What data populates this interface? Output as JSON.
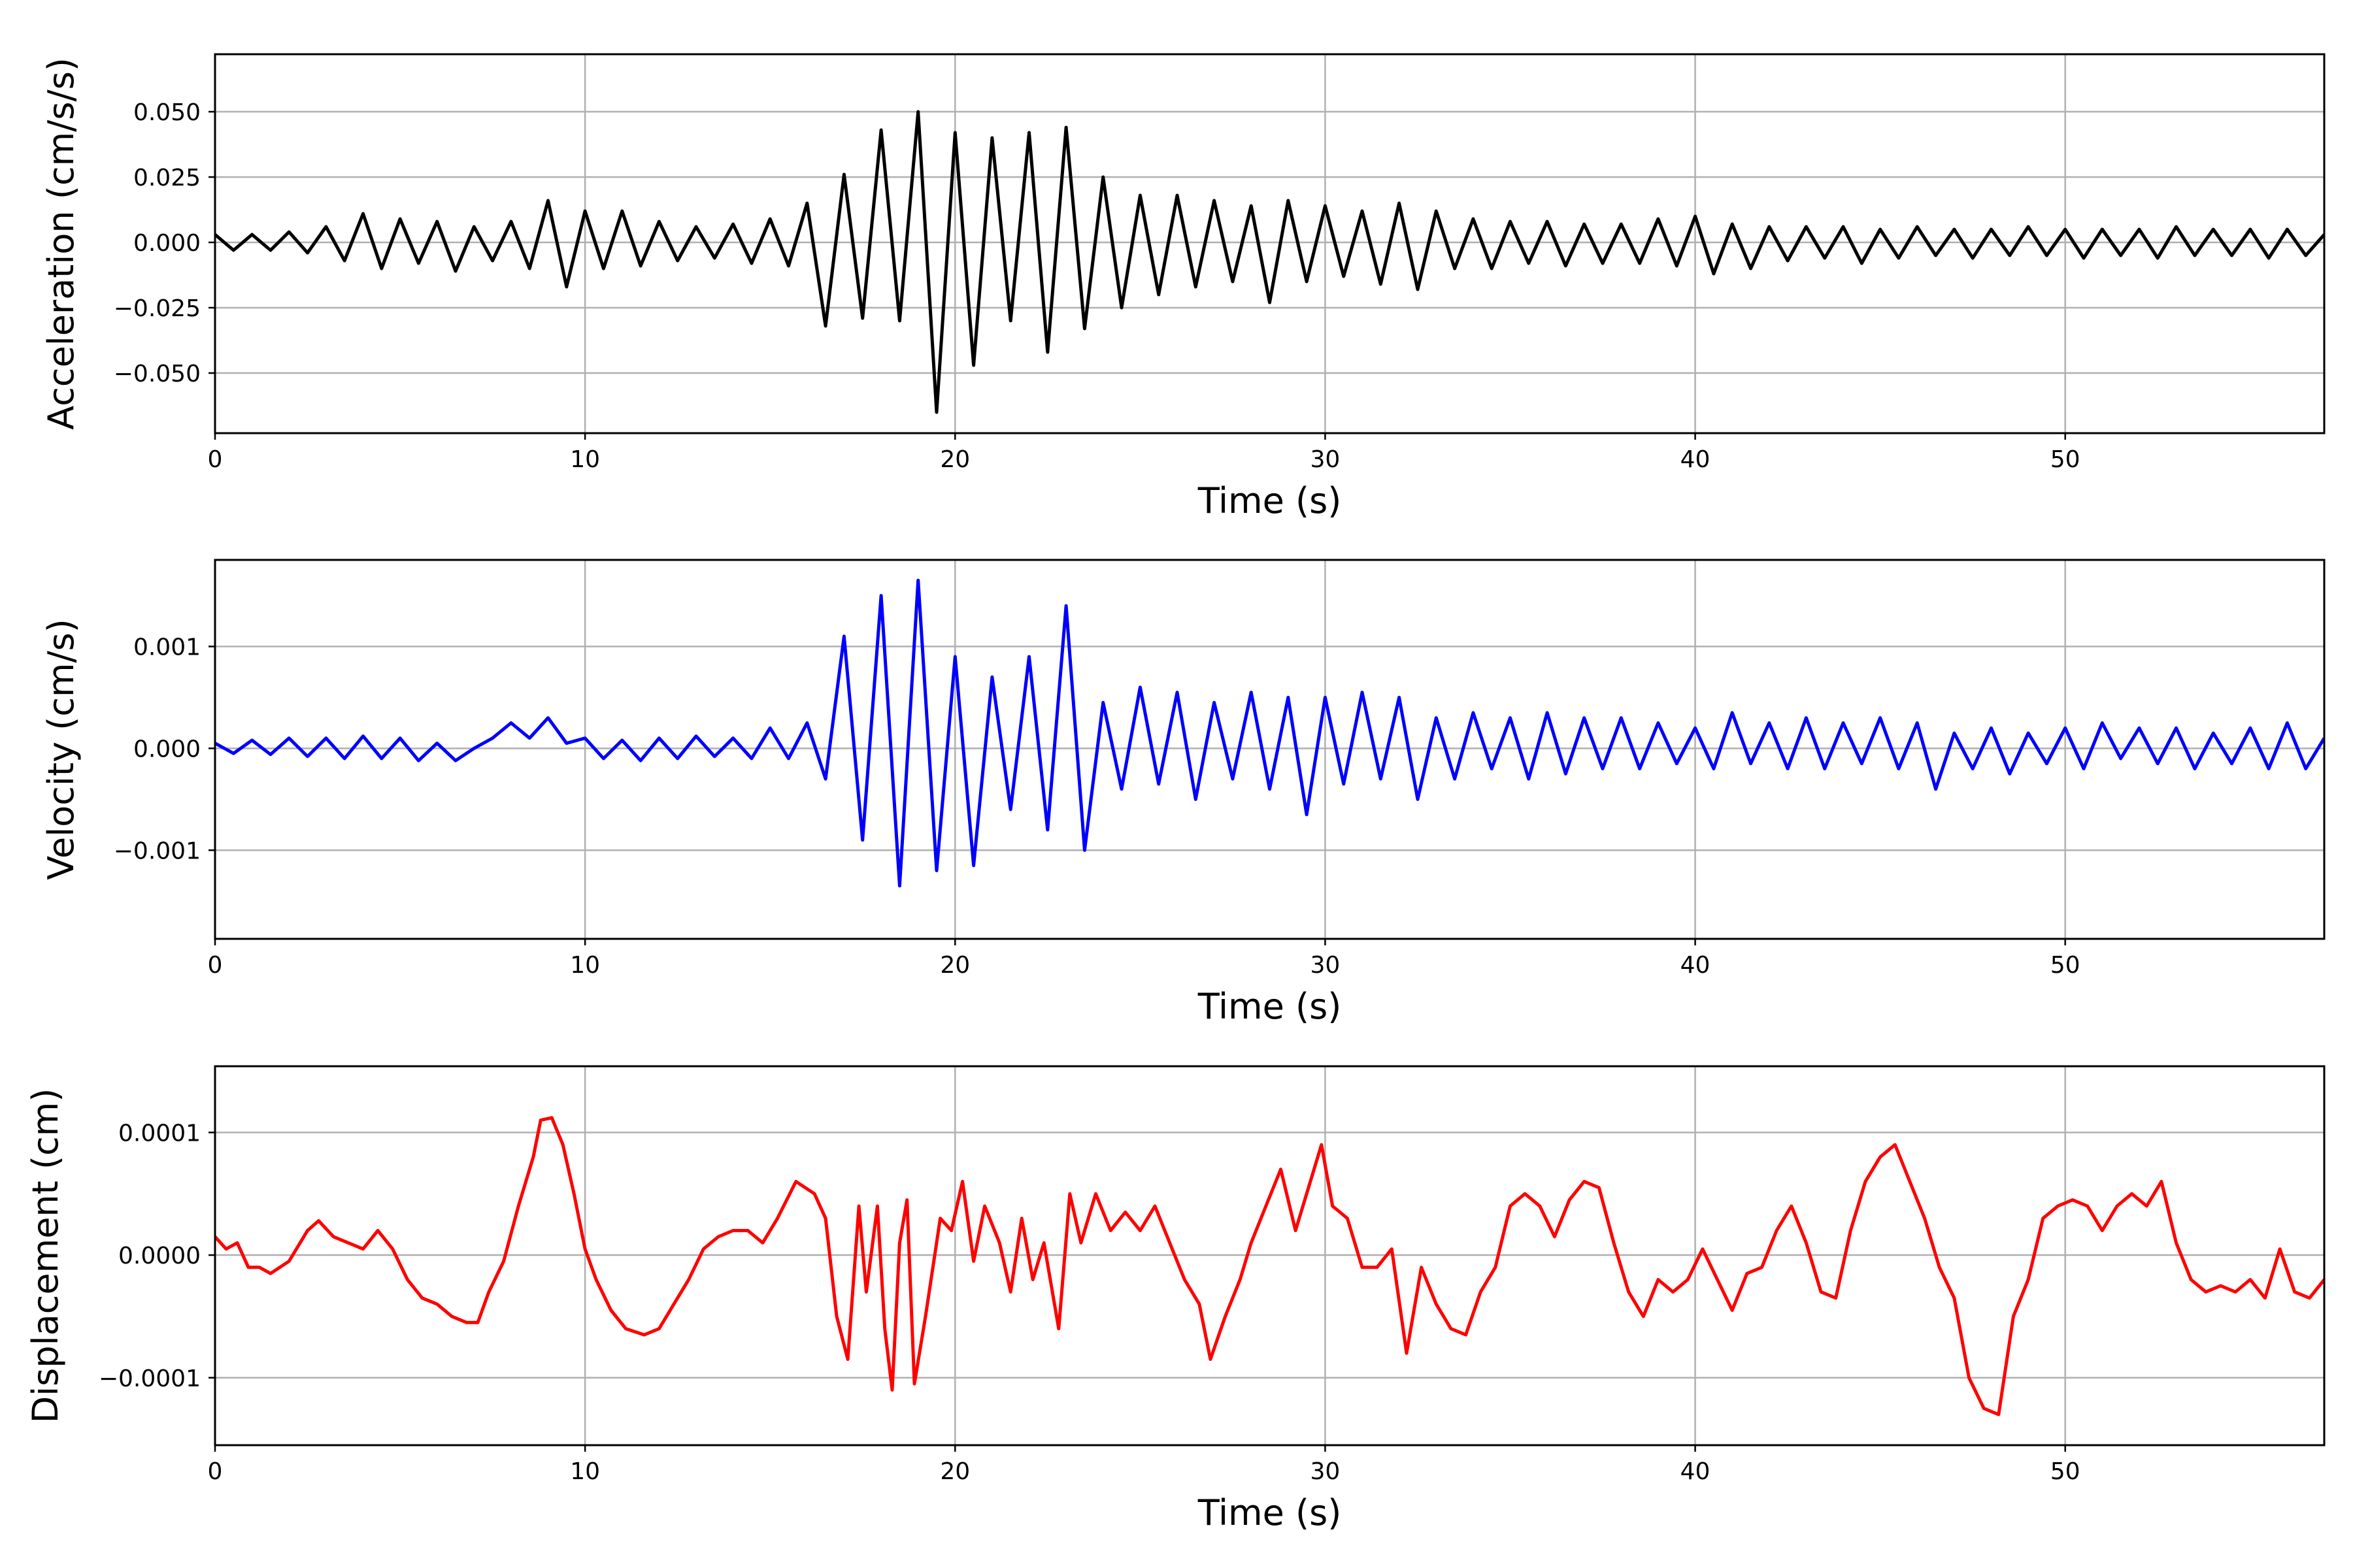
{
  "chart_data": [
    {
      "type": "line",
      "title": "",
      "xlabel": "Time (s)",
      "ylabel": "Acceleration (cm/s/s)",
      "xlim": [
        0,
        57
      ],
      "ylim": [
        -0.073,
        0.072
      ],
      "xticks": [
        0,
        10,
        20,
        30,
        40,
        50
      ],
      "xtick_labels": [
        "0",
        "10",
        "20",
        "30",
        "40",
        "50"
      ],
      "yticks": [
        -0.05,
        -0.025,
        0,
        0.025,
        0.05
      ],
      "ytick_labels": [
        "−0.050",
        "−0.025",
        "0.000",
        "0.025",
        "0.050"
      ],
      "grid": true,
      "color": "#000000",
      "t0": 0,
      "dt": 0.5,
      "scale": 0.01,
      "values": [
        0.3,
        -0.3,
        0.3,
        -0.3,
        0.4,
        -0.4,
        0.6,
        -0.7,
        1.1,
        -1.0,
        0.9,
        -0.8,
        0.8,
        -1.1,
        0.6,
        -0.7,
        0.8,
        -1.0,
        1.6,
        -1.7,
        1.2,
        -1.0,
        1.2,
        -0.9,
        0.8,
        -0.7,
        0.6,
        -0.6,
        0.7,
        -0.8,
        0.9,
        -0.9,
        1.5,
        -3.2,
        2.6,
        -2.9,
        4.3,
        -3.0,
        5.0,
        -6.5,
        4.2,
        -4.7,
        4.0,
        -3.0,
        4.2,
        -4.2,
        4.4,
        -3.3,
        2.5,
        -2.5,
        1.8,
        -2.0,
        1.8,
        -1.7,
        1.6,
        -1.5,
        1.4,
        -2.3,
        1.6,
        -1.5,
        1.4,
        -1.3,
        1.2,
        -1.6,
        1.5,
        -1.8,
        1.2,
        -1.0,
        0.9,
        -1.0,
        0.8,
        -0.8,
        0.8,
        -0.9,
        0.7,
        -0.8,
        0.7,
        -0.8,
        0.9,
        -0.9,
        1.0,
        -1.2,
        0.7,
        -1.0,
        0.6,
        -0.7,
        0.6,
        -0.6,
        0.6,
        -0.8,
        0.5,
        -0.6,
        0.6,
        -0.5,
        0.5,
        -0.6,
        0.5,
        -0.5,
        0.6,
        -0.5,
        0.5,
        -0.6,
        0.5,
        -0.5,
        0.5,
        -0.6,
        0.6,
        -0.5,
        0.5,
        -0.5,
        0.5,
        -0.6,
        0.5,
        -0.5,
        0.3
      ]
    },
    {
      "type": "line",
      "title": "",
      "xlabel": "Time (s)",
      "ylabel": "Velocity (cm/s)",
      "xlim": [
        0,
        57
      ],
      "ylim": [
        -0.00187,
        0.00185
      ],
      "xticks": [
        0,
        10,
        20,
        30,
        40,
        50
      ],
      "xtick_labels": [
        "0",
        "10",
        "20",
        "30",
        "40",
        "50"
      ],
      "yticks": [
        -0.001,
        0,
        0.001
      ],
      "ytick_labels": [
        "−0.001",
        "0.000",
        "0.001"
      ],
      "grid": true,
      "color": "#0000ff",
      "t0": 0,
      "dt": 0.5,
      "scale": 0.001,
      "values": [
        0.05,
        -0.05,
        0.08,
        -0.06,
        0.1,
        -0.08,
        0.1,
        -0.1,
        0.12,
        -0.1,
        0.1,
        -0.12,
        0.05,
        -0.12,
        0.0,
        0.1,
        0.25,
        0.1,
        0.3,
        0.05,
        0.1,
        -0.1,
        0.08,
        -0.12,
        0.1,
        -0.1,
        0.12,
        -0.08,
        0.1,
        -0.1,
        0.2,
        -0.1,
        0.25,
        -0.3,
        1.1,
        -0.9,
        1.5,
        -1.35,
        1.65,
        -1.2,
        0.9,
        -1.15,
        0.7,
        -0.6,
        0.9,
        -0.8,
        1.4,
        -1.0,
        0.45,
        -0.4,
        0.6,
        -0.35,
        0.55,
        -0.5,
        0.45,
        -0.3,
        0.55,
        -0.4,
        0.5,
        -0.65,
        0.5,
        -0.35,
        0.55,
        -0.3,
        0.5,
        -0.5,
        0.3,
        -0.3,
        0.35,
        -0.2,
        0.3,
        -0.3,
        0.35,
        -0.25,
        0.3,
        -0.2,
        0.3,
        -0.2,
        0.25,
        -0.15,
        0.2,
        -0.2,
        0.35,
        -0.15,
        0.25,
        -0.2,
        0.3,
        -0.2,
        0.25,
        -0.15,
        0.3,
        -0.2,
        0.25,
        -0.4,
        0.15,
        -0.2,
        0.2,
        -0.25,
        0.15,
        -0.15,
        0.2,
        -0.2,
        0.25,
        -0.1,
        0.2,
        -0.15,
        0.2,
        -0.2,
        0.15,
        -0.15,
        0.2,
        -0.2,
        0.25,
        -0.2,
        0.1
      ]
    },
    {
      "type": "line",
      "title": "",
      "xlabel": "Time (s)",
      "ylabel": "Displacement (cm)",
      "xlim": [
        0,
        57
      ],
      "ylim": [
        -0.000155,
        0.000154
      ],
      "xticks": [
        0,
        10,
        20,
        30,
        40,
        50
      ],
      "xtick_labels": [
        "0",
        "10",
        "20",
        "30",
        "40",
        "50"
      ],
      "yticks": [
        -0.0001,
        0,
        0.0001
      ],
      "ytick_labels": [
        "−0.0001",
        "0.0000",
        "0.0001"
      ],
      "grid": true,
      "color": "#ff0000",
      "scale": 0.0001,
      "x": [
        0,
        0.3,
        0.6,
        0.9,
        1.2,
        1.5,
        2,
        2.5,
        2.8,
        3.2,
        3.6,
        4,
        4.4,
        4.8,
        5.2,
        5.6,
        6,
        6.4,
        6.8,
        7.1,
        7.4,
        7.8,
        8.2,
        8.6,
        8.8,
        9.1,
        9.4,
        9.7,
        10,
        10.3,
        10.7,
        11.1,
        11.6,
        12,
        12.4,
        12.8,
        13.2,
        13.6,
        14,
        14.4,
        14.8,
        15.2,
        15.7,
        16.2,
        16.5,
        16.8,
        17.1,
        17.4,
        17.6,
        17.9,
        18.1,
        18.3,
        18.5,
        18.7,
        18.9,
        19.2,
        19.6,
        19.9,
        20.2,
        20.5,
        20.8,
        21.2,
        21.5,
        21.8,
        22.1,
        22.4,
        22.8,
        23.1,
        23.4,
        23.8,
        24.2,
        24.6,
        25,
        25.4,
        25.8,
        26.2,
        26.6,
        26.9,
        27.3,
        27.7,
        28,
        28.4,
        28.8,
        29.2,
        29.6,
        29.9,
        30.2,
        30.6,
        31,
        31.4,
        31.8,
        32.2,
        32.6,
        33,
        33.4,
        33.8,
        34.2,
        34.6,
        35,
        35.4,
        35.8,
        36.2,
        36.6,
        37,
        37.4,
        37.8,
        38.2,
        38.6,
        39,
        39.4,
        39.8,
        40.2,
        40.6,
        41,
        41.4,
        41.8,
        42.2,
        42.6,
        43,
        43.4,
        43.8,
        44.2,
        44.6,
        45,
        45.4,
        45.8,
        46.2,
        46.6,
        47,
        47.4,
        47.8,
        48.2,
        48.6,
        49,
        49.4,
        49.8,
        50.2,
        50.6,
        51,
        51.4,
        51.8,
        52.2,
        52.6,
        53,
        53.4,
        53.8,
        54.2,
        54.6,
        55,
        55.4,
        55.8,
        56.2,
        56.6,
        57
      ],
      "values": [
        0.15,
        0.05,
        0.1,
        -0.1,
        -0.1,
        -0.15,
        -0.05,
        0.2,
        0.28,
        0.15,
        0.1,
        0.05,
        0.2,
        0.05,
        -0.2,
        -0.35,
        -0.4,
        -0.5,
        -0.55,
        -0.55,
        -0.3,
        -0.05,
        0.4,
        0.8,
        1.1,
        1.12,
        0.9,
        0.5,
        0.05,
        -0.2,
        -0.45,
        -0.6,
        -0.65,
        -0.6,
        -0.4,
        -0.2,
        0.05,
        0.15,
        0.2,
        0.2,
        0.1,
        0.3,
        0.6,
        0.5,
        0.3,
        -0.5,
        -0.85,
        0.4,
        -0.3,
        0.4,
        -0.6,
        -1.1,
        0.1,
        0.45,
        -1.05,
        -0.5,
        0.3,
        0.2,
        0.6,
        -0.05,
        0.4,
        0.1,
        -0.3,
        0.3,
        -0.2,
        0.1,
        -0.6,
        0.5,
        0.1,
        0.5,
        0.2,
        0.35,
        0.2,
        0.4,
        0.1,
        -0.2,
        -0.4,
        -0.85,
        -0.5,
        -0.2,
        0.1,
        0.4,
        0.7,
        0.2,
        0.6,
        0.9,
        0.4,
        0.3,
        -0.1,
        -0.1,
        0.05,
        -0.8,
        -0.1,
        -0.4,
        -0.6,
        -0.65,
        -0.3,
        -0.1,
        0.4,
        0.5,
        0.4,
        0.15,
        0.45,
        0.6,
        0.55,
        0.1,
        -0.3,
        -0.5,
        -0.2,
        -0.3,
        -0.2,
        0.05,
        -0.2,
        -0.45,
        -0.15,
        -0.1,
        0.2,
        0.4,
        0.1,
        -0.3,
        -0.35,
        0.2,
        0.6,
        0.8,
        0.9,
        0.6,
        0.3,
        -0.1,
        -0.35,
        -1.0,
        -1.25,
        -1.3,
        -0.5,
        -0.2,
        0.3,
        0.4,
        0.45,
        0.4,
        0.2,
        0.4,
        0.5,
        0.4,
        0.6,
        0.1,
        -0.2,
        -0.3,
        -0.25,
        -0.3,
        -0.2,
        -0.35,
        0.05,
        -0.3,
        -0.35,
        -0.2
      ]
    }
  ]
}
